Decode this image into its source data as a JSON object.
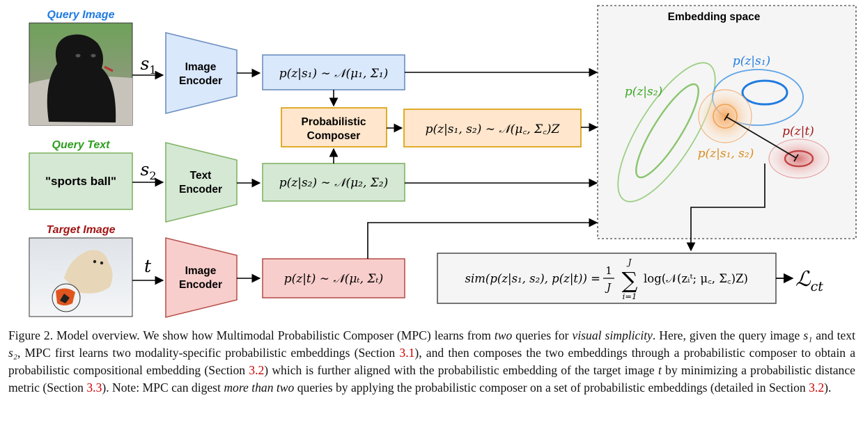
{
  "labels": {
    "query_image": "Query Image",
    "query_text": "Query Text",
    "target_image": "Target Image",
    "query_text_value": "\"sports ball\"",
    "embedding_space": "Embedding space"
  },
  "encoders": {
    "image_encoder_1": [
      "Image",
      "Encoder"
    ],
    "text_encoder": [
      "Text",
      "Encoder"
    ],
    "image_encoder_2": [
      "Image",
      "Encoder"
    ]
  },
  "composer": [
    "Probabilistic",
    "Composer"
  ],
  "symbols": {
    "s1": "s",
    "s1_sub": "1",
    "s2": "s",
    "s2_sub": "2",
    "t": "t"
  },
  "formulas": {
    "p_s1": "p(z|s₁) ∼ 𝒩(μ₁, Σ₁)",
    "p_s2": "p(z|s₂) ∼ 𝒩(μ₂, Σ₂)",
    "p_t": "p(z|t) ∼ 𝒩(μₜ, Σₜ)",
    "p_c": "p(z|s₁, s₂) ∼ 𝒩(μ꜀, Σ꜀)Z",
    "sim_left": "sim(p(z|s₁, s₂), p(z|t)) = ",
    "sim_frac_num": "1",
    "sim_frac_den": "J",
    "sum_top": "J",
    "sum_bottom": "i=1",
    "sim_right": "log(𝒩(zᵢᵗ; μ꜀, Σ꜀)Z)",
    "loss": "ℒ",
    "loss_sub": "ct"
  },
  "embedding_labels": {
    "p_s1": "p(z|s₁)",
    "p_s2": "p(z|s₂)",
    "p_t": "p(z|t)",
    "p_c": "p(z|s₁, s₂)"
  },
  "caption": {
    "p1": "Figure 2. Model overview. We show how Multimodal Probabilistic Composer (MPC) learns from ",
    "p1_i": "two",
    "p2": " queries for ",
    "p2_i": "visual simplicity",
    "p3": ". Here, given the query image ",
    "p3_v": "s₁",
    "p4": " and text ",
    "p4_v": "s₂",
    "p5": ", MPC first learns two modality-specific probabilistic embeddings (Section ",
    "ref1": "3.1",
    "p6": "), and then composes the two embeddings through a probabilistic composer to obtain a probabilistic compositional embedding (Section ",
    "ref2": "3.2",
    "p7": ") which is further aligned with the probabilistic embedding of the target image ",
    "p7_v": "t",
    "p8": " by minimizing a probabilistic distance metric (Section ",
    "ref3": "3.3",
    "p9": "). Note: MPC can digest ",
    "p9_i": "more than two",
    "p10": " queries by applying the probabilistic composer on a set of probabilistic embeddings (detailed in Section ",
    "ref4": "3.2",
    "p11": ")."
  },
  "colors": {
    "blue_fill": "#dae8fc",
    "blue_stroke": "#6c8ebf",
    "green_fill": "#d5e8d4",
    "green_stroke": "#82b366",
    "red_fill": "#f8cecc",
    "red_stroke": "#b85450",
    "orange_fill": "#ffe6cc",
    "orange_stroke": "#d79b00",
    "query_image_label": "#1f7be0",
    "query_text_label": "#2e9e1f",
    "target_label": "#a31515"
  }
}
